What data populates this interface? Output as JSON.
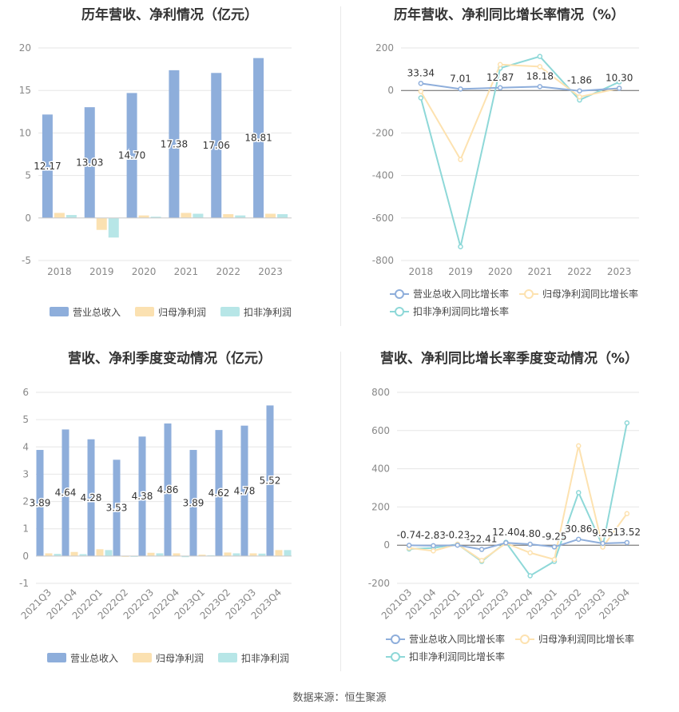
{
  "source": "数据来源：恒生聚源",
  "colors": {
    "revenue": "#8eaedb",
    "net_profit": "#fbe1b1",
    "deducted": "#b7e6e7",
    "line_revenue": "#8eaedb",
    "line_net": "#fde2b0",
    "line_deducted": "#8ed8d8"
  },
  "chart_data": [
    {
      "type": "bar",
      "title": "历年营收、净利情况（亿元）",
      "categories": [
        "2018",
        "2019",
        "2020",
        "2021",
        "2022",
        "2023"
      ],
      "ylim": [
        -5,
        20
      ],
      "yticks": [
        -5,
        0,
        5,
        10,
        15,
        20
      ],
      "series": [
        {
          "name": "营业总收入",
          "values": [
            12.17,
            13.03,
            14.7,
            17.38,
            17.06,
            18.81
          ],
          "labels": [
            "12.17",
            "13.03",
            "14.70",
            "17.38",
            "17.06",
            "18.81"
          ]
        },
        {
          "name": "归母净利润",
          "values": [
            0.6,
            -1.4,
            0.3,
            0.6,
            0.45,
            0.5
          ]
        },
        {
          "name": "扣非净利润",
          "values": [
            0.35,
            -2.3,
            0.15,
            0.5,
            0.3,
            0.45
          ]
        }
      ]
    },
    {
      "type": "line",
      "title": "历年营收、净利同比增长率情况（%）",
      "categories": [
        "2018",
        "2019",
        "2020",
        "2021",
        "2022",
        "2023"
      ],
      "ylim": [
        -800,
        200
      ],
      "yticks": [
        -800,
        -600,
        -400,
        -200,
        0,
        200
      ],
      "series": [
        {
          "name": "营业总收入同比增长率",
          "values": [
            33.34,
            7.01,
            12.87,
            18.18,
            -1.86,
            10.3
          ],
          "labels": [
            "33.34",
            "7.01",
            "12.87",
            "18.18",
            "-1.86",
            "10.30"
          ]
        },
        {
          "name": "归母净利润同比增长率",
          "values": [
            -5,
            -325,
            122,
            112,
            -30,
            10
          ]
        },
        {
          "name": "扣非净利润同比增长率",
          "values": [
            -35,
            -735,
            105,
            160,
            -45,
            40
          ]
        }
      ]
    },
    {
      "type": "bar",
      "title": "营收、净利季度变动情况（亿元）",
      "categories": [
        "2021Q3",
        "2021Q4",
        "2022Q1",
        "2022Q2",
        "2022Q3",
        "2022Q4",
        "2023Q1",
        "2023Q2",
        "2023Q3",
        "2023Q4"
      ],
      "ylim": [
        -1,
        6
      ],
      "yticks": [
        -1,
        0,
        1,
        2,
        3,
        4,
        5,
        6
      ],
      "series": [
        {
          "name": "营业总收入",
          "values": [
            3.89,
            4.64,
            4.28,
            3.53,
            4.38,
            4.86,
            3.89,
            4.62,
            4.78,
            5.52
          ],
          "labels": [
            "3.89",
            "4.64",
            "4.28",
            "3.53",
            "4.38",
            "4.86",
            "3.89",
            "4.62",
            "4.78",
            "5.52"
          ]
        },
        {
          "name": "归母净利润",
          "values": [
            0.1,
            0.15,
            0.25,
            -0.02,
            0.12,
            0.1,
            0.05,
            0.13,
            0.1,
            0.22
          ]
        },
        {
          "name": "扣非净利润",
          "values": [
            0.08,
            0.07,
            0.22,
            -0.03,
            0.1,
            -0.04,
            0.03,
            0.1,
            0.09,
            0.22
          ]
        }
      ]
    },
    {
      "type": "line",
      "title": "营收、净利同比增长率季度变动情况（%）",
      "categories": [
        "2021Q3",
        "2021Q4",
        "2022Q1",
        "2022Q2",
        "2022Q3",
        "2022Q4",
        "2023Q1",
        "2023Q2",
        "2023Q3",
        "2023Q4"
      ],
      "ylim": [
        -200,
        800
      ],
      "yticks": [
        -200,
        0,
        200,
        400,
        600,
        800
      ],
      "series": [
        {
          "name": "营业总收入同比增长率",
          "values": [
            -0.74,
            -2.83,
            -0.23,
            -22.41,
            12.4,
            4.8,
            -9.25,
            30.86,
            9.25,
            13.52
          ],
          "labels": [
            "-0.74",
            "-2.83",
            "-0.23",
            "-22.41",
            "12.40",
            "4.80",
            "-9.25",
            "30.86",
            "9.25",
            "13.52"
          ]
        },
        {
          "name": "归母净利润同比增长率",
          "values": [
            -15,
            -30,
            5,
            -80,
            10,
            -40,
            -75,
            520,
            -10,
            165
          ]
        },
        {
          "name": "扣非净利润同比增长率",
          "values": [
            -20,
            -15,
            5,
            -85,
            15,
            -160,
            -85,
            275,
            -5,
            640
          ]
        }
      ]
    }
  ]
}
